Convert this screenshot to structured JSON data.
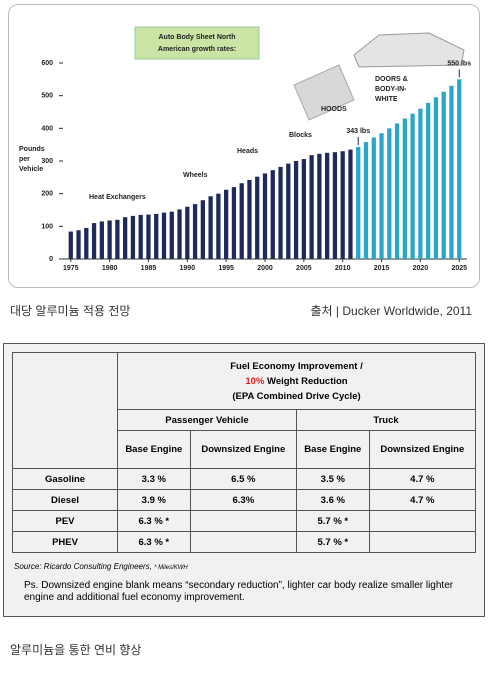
{
  "chart_data": {
    "type": "bar",
    "title": [
      "Auto Body Sheet North",
      "American growth rates:"
    ],
    "y_label": [
      "Pounds",
      "per",
      "Vehicle"
    ],
    "x": [
      1975,
      1976,
      1977,
      1978,
      1979,
      1980,
      1981,
      1982,
      1983,
      1984,
      1985,
      1986,
      1987,
      1988,
      1989,
      1990,
      1991,
      1992,
      1993,
      1994,
      1995,
      1996,
      1997,
      1998,
      1999,
      2000,
      2001,
      2002,
      2003,
      2004,
      2005,
      2006,
      2007,
      2008,
      2009,
      2010,
      2011,
      2012,
      2013,
      2014,
      2015,
      2016,
      2017,
      2018,
      2019,
      2020,
      2021,
      2022,
      2023,
      2024,
      2025
    ],
    "series": [
      {
        "color": "#1f2a5c",
        "values": [
          84,
          88,
          95,
          110,
          115,
          118,
          120,
          128,
          132,
          135,
          136,
          138,
          142,
          145,
          152,
          160,
          168,
          180,
          192,
          200,
          212,
          220,
          232,
          242,
          252,
          262,
          272,
          282,
          292,
          300,
          306,
          318,
          322,
          325,
          327,
          330,
          335,
          null,
          null,
          null,
          null,
          null,
          null,
          null,
          null,
          null,
          null,
          null,
          null,
          null,
          null
        ]
      },
      {
        "color": "#2aa6c8",
        "values": [
          null,
          null,
          null,
          null,
          null,
          null,
          null,
          null,
          null,
          null,
          null,
          null,
          null,
          null,
          null,
          null,
          null,
          null,
          null,
          null,
          null,
          null,
          null,
          null,
          null,
          null,
          null,
          null,
          null,
          null,
          null,
          null,
          null,
          null,
          null,
          null,
          null,
          343,
          358,
          372,
          385,
          400,
          415,
          430,
          445,
          460,
          478,
          495,
          512,
          530,
          550
        ],
        "value_labels": [
          null,
          null,
          null,
          null,
          null,
          null,
          null,
          null,
          null,
          null,
          null,
          null,
          null,
          null,
          null,
          null,
          null,
          null,
          null,
          null,
          null,
          null,
          null,
          null,
          null,
          null,
          null,
          null,
          null,
          null,
          null,
          null,
          null,
          null,
          null,
          null,
          null,
          "343 lbs",
          null,
          null,
          null,
          null,
          null,
          null,
          null,
          null,
          null,
          null,
          null,
          null,
          "550 lbs"
        ]
      }
    ],
    "xlim": [
      1974,
      2026
    ],
    "xticks": [
      1975,
      1980,
      1985,
      1990,
      1995,
      2000,
      2005,
      2010,
      2015,
      2020,
      2025
    ],
    "ylim": [
      0,
      600
    ],
    "yticks": [
      0,
      100,
      200,
      300,
      400,
      500,
      600
    ],
    "annotations": [
      [
        "Heat Exchangers"
      ],
      [
        "Wheels"
      ],
      [
        "Heads"
      ],
      [
        "Blocks"
      ],
      [
        "HOODS"
      ],
      [
        "DOORS &",
        "BODY-IN-",
        "WHITE"
      ]
    ]
  },
  "captions": {
    "chart": "대당 알루미늄 적용 전망",
    "chart_source": "출처 | Ducker Worldwide, 2011",
    "table": "알루미늄을 통한 연비 향상"
  },
  "table": {
    "title": {
      "line1": "Fuel Economy Improvement /",
      "highlight": "10%",
      "line2": "Weight Reduction",
      "line3": "(EPA Combined Drive Cycle)"
    },
    "groups": [
      "Passenger Vehicle",
      "Truck"
    ],
    "columns": [
      "Base Engine",
      "Downsized Engine",
      "Base Engine",
      "Downsized Engine"
    ],
    "rows": [
      {
        "label": "Gasoline",
        "cells": [
          "3.3 %",
          "6.5 %",
          "3.5 %",
          "4.7 %"
        ]
      },
      {
        "label": "Diesel",
        "cells": [
          "3.9 %",
          "6.3%",
          "3.6 %",
          "4.7 %"
        ]
      },
      {
        "label": "PEV",
        "cells": [
          "6.3 % *",
          null,
          "5.7 % *",
          null
        ]
      },
      {
        "label": "PHEV",
        "cells": [
          "6.3 % *",
          null,
          "5.7 % *",
          null
        ]
      }
    ],
    "source": "Source: Ricardo Consulting Engineers,",
    "source_note": "* Miles/KWH",
    "note": "Ps. Downsized engine blank means “secondary reduction”, lighter car body realize smaller lighter engine and additional fuel economy improvement."
  }
}
